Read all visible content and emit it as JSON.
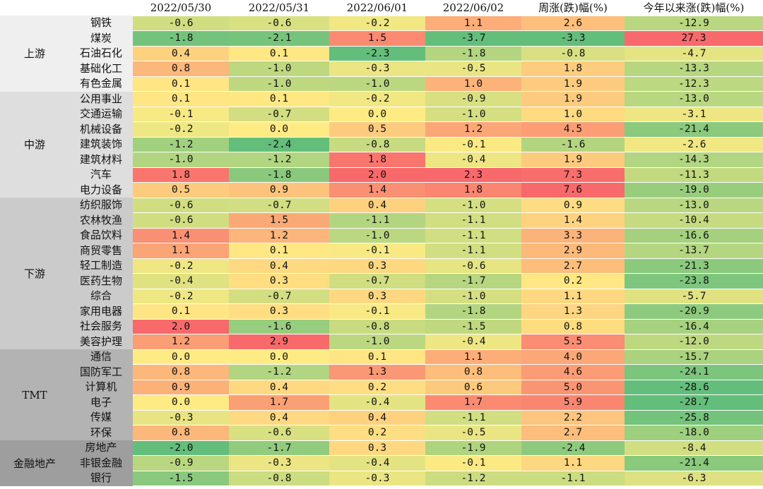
{
  "chart_data": {
    "type": "table",
    "columns": [
      "2022/05/30",
      "2022/05/31",
      "2022/06/01",
      "2022/06/02",
      "周涨(跌)幅(%)",
      "今年以来涨(跌)幅(%)"
    ],
    "groups": [
      {
        "name": "上游",
        "color": "#efefef",
        "rows": [
          {
            "industry": "钢铁",
            "values": [
              "-0.6",
              "-0.6",
              "-0.2",
              "1.1",
              "2.6",
              "-12.9"
            ]
          },
          {
            "industry": "煤炭",
            "values": [
              "-1.8",
              "-2.1",
              "1.5",
              "-3.7",
              "-3.3",
              "27.3"
            ]
          },
          {
            "industry": "石油石化",
            "values": [
              "0.4",
              "0.1",
              "-2.3",
              "-1.8",
              "-0.8",
              "-4.7"
            ]
          },
          {
            "industry": "基础化工",
            "values": [
              "0.8",
              "-1.0",
              "-0.3",
              "-0.5",
              "1.8",
              "-13.3"
            ]
          },
          {
            "industry": "有色金属",
            "values": [
              "0.1",
              "-1.0",
              "-1.0",
              "1.0",
              "1.9",
              "-12.3"
            ]
          }
        ]
      },
      {
        "name": "中游",
        "color": "#dedede",
        "rows": [
          {
            "industry": "公用事业",
            "values": [
              "0.1",
              "0.1",
              "-0.2",
              "-0.9",
              "1.9",
              "-13.0"
            ]
          },
          {
            "industry": "交通运输",
            "values": [
              "-0.1",
              "-0.7",
              "0.0",
              "-1.0",
              "1.0",
              "-3.1"
            ]
          },
          {
            "industry": "机械设备",
            "values": [
              "-0.2",
              "0.0",
              "0.5",
              "1.2",
              "4.5",
              "-21.4"
            ]
          },
          {
            "industry": "建筑装饰",
            "values": [
              "-1.2",
              "-2.4",
              "-0.8",
              "-0.1",
              "-1.6",
              "-2.6"
            ]
          },
          {
            "industry": "建筑材料",
            "values": [
              "-1.0",
              "-1.2",
              "1.8",
              "-0.4",
              "1.9",
              "-14.3"
            ]
          },
          {
            "industry": "汽车",
            "values": [
              "1.8",
              "-1.8",
              "2.0",
              "2.3",
              "7.3",
              "-11.3"
            ]
          },
          {
            "industry": "电力设备",
            "values": [
              "0.5",
              "0.9",
              "1.4",
              "1.8",
              "7.6",
              "-19.0"
            ]
          }
        ]
      },
      {
        "name": "下游",
        "color": "#cbcbcb",
        "rows": [
          {
            "industry": "纺织服饰",
            "values": [
              "-0.6",
              "-0.7",
              "0.4",
              "-1.0",
              "0.9",
              "-13.0"
            ]
          },
          {
            "industry": "农林牧渔",
            "values": [
              "-0.6",
              "1.5",
              "-1.1",
              "-1.1",
              "1.4",
              "-10.4"
            ]
          },
          {
            "industry": "食品饮料",
            "values": [
              "1.4",
              "1.2",
              "-1.0",
              "-1.1",
              "3.3",
              "-16.6"
            ]
          },
          {
            "industry": "商贸零售",
            "values": [
              "1.1",
              "0.1",
              "-0.1",
              "-1.1",
              "2.9",
              "-13.7"
            ]
          },
          {
            "industry": "轻工制造",
            "values": [
              "-0.2",
              "0.4",
              "0.3",
              "-0.6",
              "2.7",
              "-21.3"
            ]
          },
          {
            "industry": "医药生物",
            "values": [
              "-0.4",
              "0.3",
              "-0.7",
              "-1.7",
              "0.2",
              "-23.8"
            ]
          },
          {
            "industry": "综合",
            "values": [
              "-0.2",
              "-0.7",
              "0.3",
              "-1.0",
              "1.1",
              "-5.7"
            ]
          },
          {
            "industry": "家用电器",
            "values": [
              "0.1",
              "0.3",
              "-0.1",
              "-1.8",
              "1.3",
              "-20.9"
            ]
          },
          {
            "industry": "社会服务",
            "values": [
              "2.0",
              "-1.6",
              "-0.8",
              "-1.5",
              "0.8",
              "-16.4"
            ]
          },
          {
            "industry": "美容护理",
            "values": [
              "1.2",
              "2.9",
              "-1.0",
              "-0.4",
              "5.5",
              "-12.0"
            ]
          }
        ]
      },
      {
        "name": "TMT",
        "color": "#b3b3b3",
        "rows": [
          {
            "industry": "通信",
            "values": [
              "0.0",
              "0.0",
              "0.1",
              "1.1",
              "4.0",
              "-15.7"
            ]
          },
          {
            "industry": "国防军工",
            "values": [
              "0.8",
              "-1.2",
              "1.3",
              "0.8",
              "4.6",
              "-24.1"
            ]
          },
          {
            "industry": "计算机",
            "values": [
              "0.9",
              "0.4",
              "0.2",
              "0.6",
              "5.0",
              "-28.6"
            ]
          },
          {
            "industry": "电子",
            "values": [
              "0.0",
              "1.7",
              "-0.4",
              "1.7",
              "5.9",
              "-28.7"
            ]
          },
          {
            "industry": "传媒",
            "values": [
              "-0.3",
              "0.4",
              "0.4",
              "-1.1",
              "2.2",
              "-25.8"
            ]
          },
          {
            "industry": "环保",
            "values": [
              "0.8",
              "-0.6",
              "0.2",
              "-0.5",
              "2.7",
              "-18.0"
            ]
          }
        ]
      },
      {
        "name": "金融地产",
        "color": "#9e9e9e",
        "rows": [
          {
            "industry": "房地产",
            "values": [
              "-2.0",
              "-1.7",
              "0.3",
              "-1.9",
              "-2.4",
              "-8.4"
            ]
          },
          {
            "industry": "非银金融",
            "values": [
              "-0.9",
              "-0.3",
              "-0.4",
              "-0.1",
              "1.1",
              "-21.4"
            ]
          },
          {
            "industry": "银行",
            "values": [
              "-1.5",
              "-0.8",
              "-0.3",
              "-1.2",
              "-1.1",
              "-6.3"
            ]
          }
        ]
      }
    ],
    "color_scale": {
      "low": "#63be7b",
      "mid": "#ffeb84",
      "high": "#f8696b"
    }
  }
}
